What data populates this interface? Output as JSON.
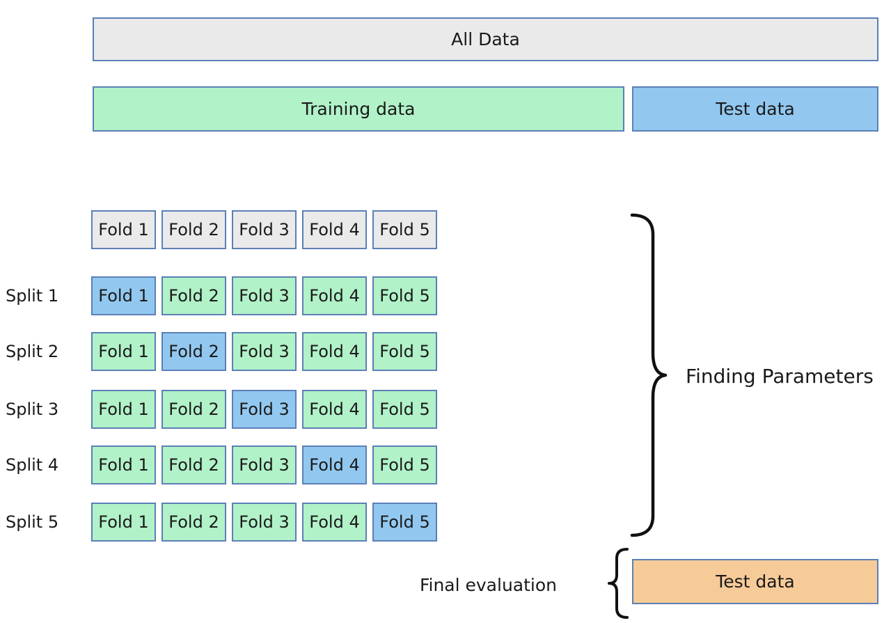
{
  "diagram": {
    "all_data_label": "All Data",
    "training_label": "Training data",
    "test_label": "Test data",
    "final_test_label": "Test data",
    "finding_parameters_label": "Finding Parameters",
    "final_evaluation_label": "Final evaluation"
  },
  "grid": {
    "fold_labels": [
      "Fold 1",
      "Fold 2",
      "Fold 3",
      "Fold 4",
      "Fold 5"
    ],
    "splits": [
      {
        "label": "Split 1",
        "test_fold_index": 0
      },
      {
        "label": "Split 2",
        "test_fold_index": 1
      },
      {
        "label": "Split 3",
        "test_fold_index": 2
      },
      {
        "label": "Split 4",
        "test_fold_index": 3
      },
      {
        "label": "Split 5",
        "test_fold_index": 4
      }
    ]
  },
  "colors": {
    "all_data_fill": "#eaeaea",
    "training_fill": "#b1f2c8",
    "test_fill": "#92c8f0",
    "final_test_fill": "#f7cb98",
    "box_border": "#5c7fb6",
    "brace": "#111111",
    "text": "#1a1a1a"
  }
}
